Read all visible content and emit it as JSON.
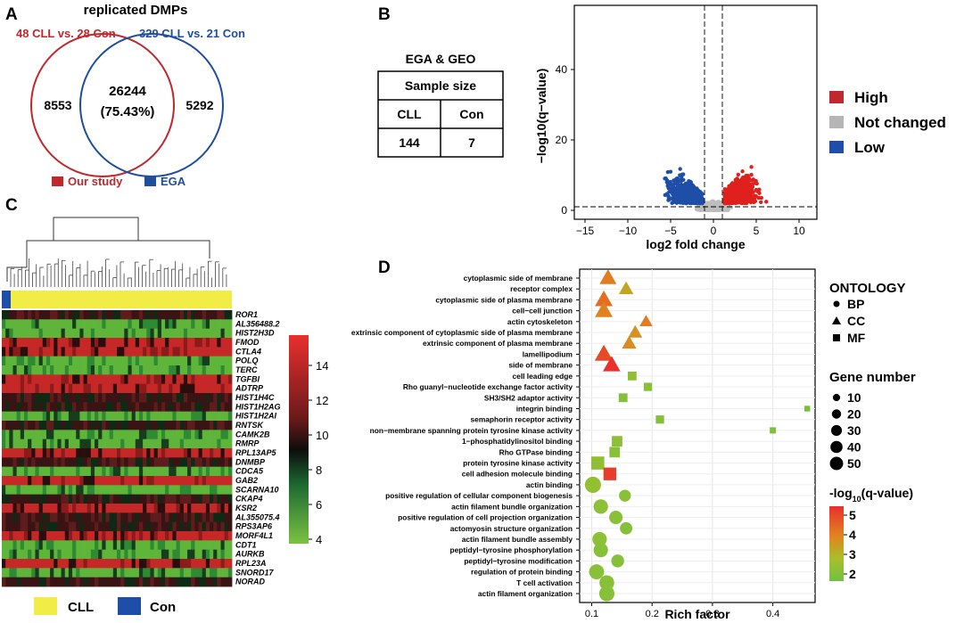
{
  "panel_labels": {
    "a": "A",
    "b": "B",
    "c": "C",
    "d": "D"
  },
  "venn": {
    "title": "replicated DMPs",
    "set1_label": "48 CLL vs. 28 Con",
    "set2_label": "329 CLL vs. 21 Con",
    "left_only": "8553",
    "overlap": "26244",
    "overlap_pct": "(75.43%)",
    "right_only": "5292",
    "legend": [
      {
        "label": "Our study",
        "color": "#c0282d"
      },
      {
        "label": "EGA",
        "color": "#1f4e9e"
      }
    ],
    "set1_color": "#c0282d",
    "set2_color": "#1f4e9e"
  },
  "sample_table": {
    "caption": "EGA & GEO",
    "header": "Sample size",
    "columns": [
      "CLL",
      "Con"
    ],
    "values": [
      "144",
      "7"
    ]
  },
  "volcano": {
    "xlabel": "log2 fold change",
    "ylabel": "−log10(q−value)",
    "xticks": [
      "−15",
      "−10",
      "−5",
      "0",
      "5",
      "10"
    ],
    "yticks": [
      "0",
      "20",
      "40"
    ],
    "legend": [
      {
        "label": "High",
        "color": "#d62728"
      },
      {
        "label": "Not changed",
        "color": "#b5b5b5"
      },
      {
        "label": "Low",
        "color": "#1f4ea8"
      }
    ]
  },
  "heatmap": {
    "genes": [
      "ROR1",
      "AL356488.2",
      "HIST2H3D",
      "FMOD",
      "CTLA4",
      "POLQ",
      "TERC",
      "TGFBI",
      "ADTRP",
      "HIST1H4C",
      "HIST1H2AG",
      "HIST1H2AI",
      "RNTSK",
      "CAMK2B",
      "RMRP",
      "RPL13AP5",
      "DNMBP",
      "CDCA5",
      "GAB2",
      "SCARNA10",
      "CKAP4",
      "KSR2",
      "AL355075.4",
      "RPS3AP6",
      "MORF4L1",
      "CDT1",
      "AURKB",
      "RPL23A",
      "SNORD17",
      "NORAD"
    ],
    "colorbar_ticks": [
      "14",
      "12",
      "10",
      "8",
      "6",
      "4"
    ],
    "legend": [
      {
        "label": "CLL",
        "color": "#f2ec46"
      },
      {
        "label": "Con",
        "color": "#1f4ea8"
      }
    ]
  },
  "chart_data": {
    "type": "scatter",
    "title": "",
    "xlabel": "Rich factor",
    "ylabel": "",
    "xlim": [
      0.08,
      0.47
    ],
    "xticks": [
      "0.1",
      "0.2",
      "0.3",
      "0.4"
    ],
    "points": [
      {
        "term": "cytoplasmic side of membrane",
        "ontology": "CC",
        "x": 0.127,
        "genes": 40,
        "q": 4.1
      },
      {
        "term": "receptor complex",
        "ontology": "CC",
        "x": 0.157,
        "genes": 27,
        "q": 3.3
      },
      {
        "term": "cytoplasmic side of plasma membrane",
        "ontology": "CC",
        "x": 0.12,
        "genes": 45,
        "q": 4.3
      },
      {
        "term": "cell−cell junction",
        "ontology": "CC",
        "x": 0.12,
        "genes": 45,
        "q": 4.0
      },
      {
        "term": "actin cytoskeleton",
        "ontology": "CC",
        "x": 0.19,
        "genes": 20,
        "q": 4.1
      },
      {
        "term": "extrinsic component of cytoplasmic side of plasma membrane",
        "ontology": "CC",
        "x": 0.172,
        "genes": 25,
        "q": 3.7
      },
      {
        "term": "extrinsic component of plasma membrane",
        "ontology": "CC",
        "x": 0.162,
        "genes": 27,
        "q": 3.8
      },
      {
        "term": "lamellipodium",
        "ontology": "CC",
        "x": 0.12,
        "genes": 48,
        "q": 4.8
      },
      {
        "term": "side of membrane",
        "ontology": "CC",
        "x": 0.133,
        "genes": 43,
        "q": 5.2
      },
      {
        "term": "cell leading edge",
        "ontology": "MF",
        "x": 0.167,
        "genes": 12,
        "q": 2.2
      },
      {
        "term": "Rho guanyl−nucleotide exchange factor activity",
        "ontology": "MF",
        "x": 0.193,
        "genes": 10,
        "q": 2.0
      },
      {
        "term": "SH3/SH2 adaptor activity",
        "ontology": "MF",
        "x": 0.152,
        "genes": 12,
        "q": 1.9
      },
      {
        "term": "integrin binding",
        "ontology": "MF",
        "x": 0.457,
        "genes": 3,
        "q": 1.6
      },
      {
        "term": "semaphorin receptor activity",
        "ontology": "MF",
        "x": 0.213,
        "genes": 10,
        "q": 1.9
      },
      {
        "term": "non−membrane spanning protein tyrosine kinase activity",
        "ontology": "MF",
        "x": 0.4,
        "genes": 4,
        "q": 1.7
      },
      {
        "term": "1−phosphatidylinositol binding",
        "ontology": "MF",
        "x": 0.142,
        "genes": 20,
        "q": 2.1
      },
      {
        "term": "Rho GTPase binding",
        "ontology": "MF",
        "x": 0.138,
        "genes": 20,
        "q": 2.0
      },
      {
        "term": "protein tyrosine kinase activity",
        "ontology": "MF",
        "x": 0.11,
        "genes": 35,
        "q": 2.2
      },
      {
        "term": "cell adhesion molecule binding",
        "ontology": "MF",
        "x": 0.13,
        "genes": 33,
        "q": 5.0
      },
      {
        "term": "actin binding",
        "ontology": "BP",
        "x": 0.102,
        "genes": 40,
        "q": 2.3
      },
      {
        "term": "positive regulation of cellular component biogenesis",
        "ontology": "BP",
        "x": 0.155,
        "genes": 18,
        "q": 2.0
      },
      {
        "term": "actin filament bundle organization",
        "ontology": "BP",
        "x": 0.115,
        "genes": 30,
        "q": 2.1
      },
      {
        "term": "positive regulation of cell projection organization",
        "ontology": "BP",
        "x": 0.14,
        "genes": 25,
        "q": 2.0
      },
      {
        "term": "actomyosin structure organization",
        "ontology": "BP",
        "x": 0.157,
        "genes": 20,
        "q": 1.9
      },
      {
        "term": "actin filament bundle assembly",
        "ontology": "BP",
        "x": 0.113,
        "genes": 30,
        "q": 2.1
      },
      {
        "term": "peptidyl−tyrosine phosphorylation",
        "ontology": "BP",
        "x": 0.115,
        "genes": 30,
        "q": 2.0
      },
      {
        "term": "peptidyl−tyrosine modification",
        "ontology": "BP",
        "x": 0.143,
        "genes": 22,
        "q": 1.9
      },
      {
        "term": "regulation of protein binding",
        "ontology": "BP",
        "x": 0.108,
        "genes": 33,
        "q": 2.0
      },
      {
        "term": "T cell activation",
        "ontology": "BP",
        "x": 0.125,
        "genes": 32,
        "q": 2.0
      },
      {
        "term": "actin filament organization",
        "ontology": "BP",
        "x": 0.125,
        "genes": 35,
        "q": 2.0
      }
    ],
    "legend": {
      "ontology_title": "ONTOLOGY",
      "ontology": [
        "BP",
        "CC",
        "MF"
      ],
      "gene_title": "Gene number",
      "gene_sizes": [
        "10",
        "20",
        "30",
        "40",
        "50"
      ],
      "q_title_prefix": "-log",
      "q_title_sub": "10",
      "q_title_suffix": "(q-value)",
      "q_ticks": [
        "5",
        "4",
        "3",
        "2"
      ]
    }
  }
}
